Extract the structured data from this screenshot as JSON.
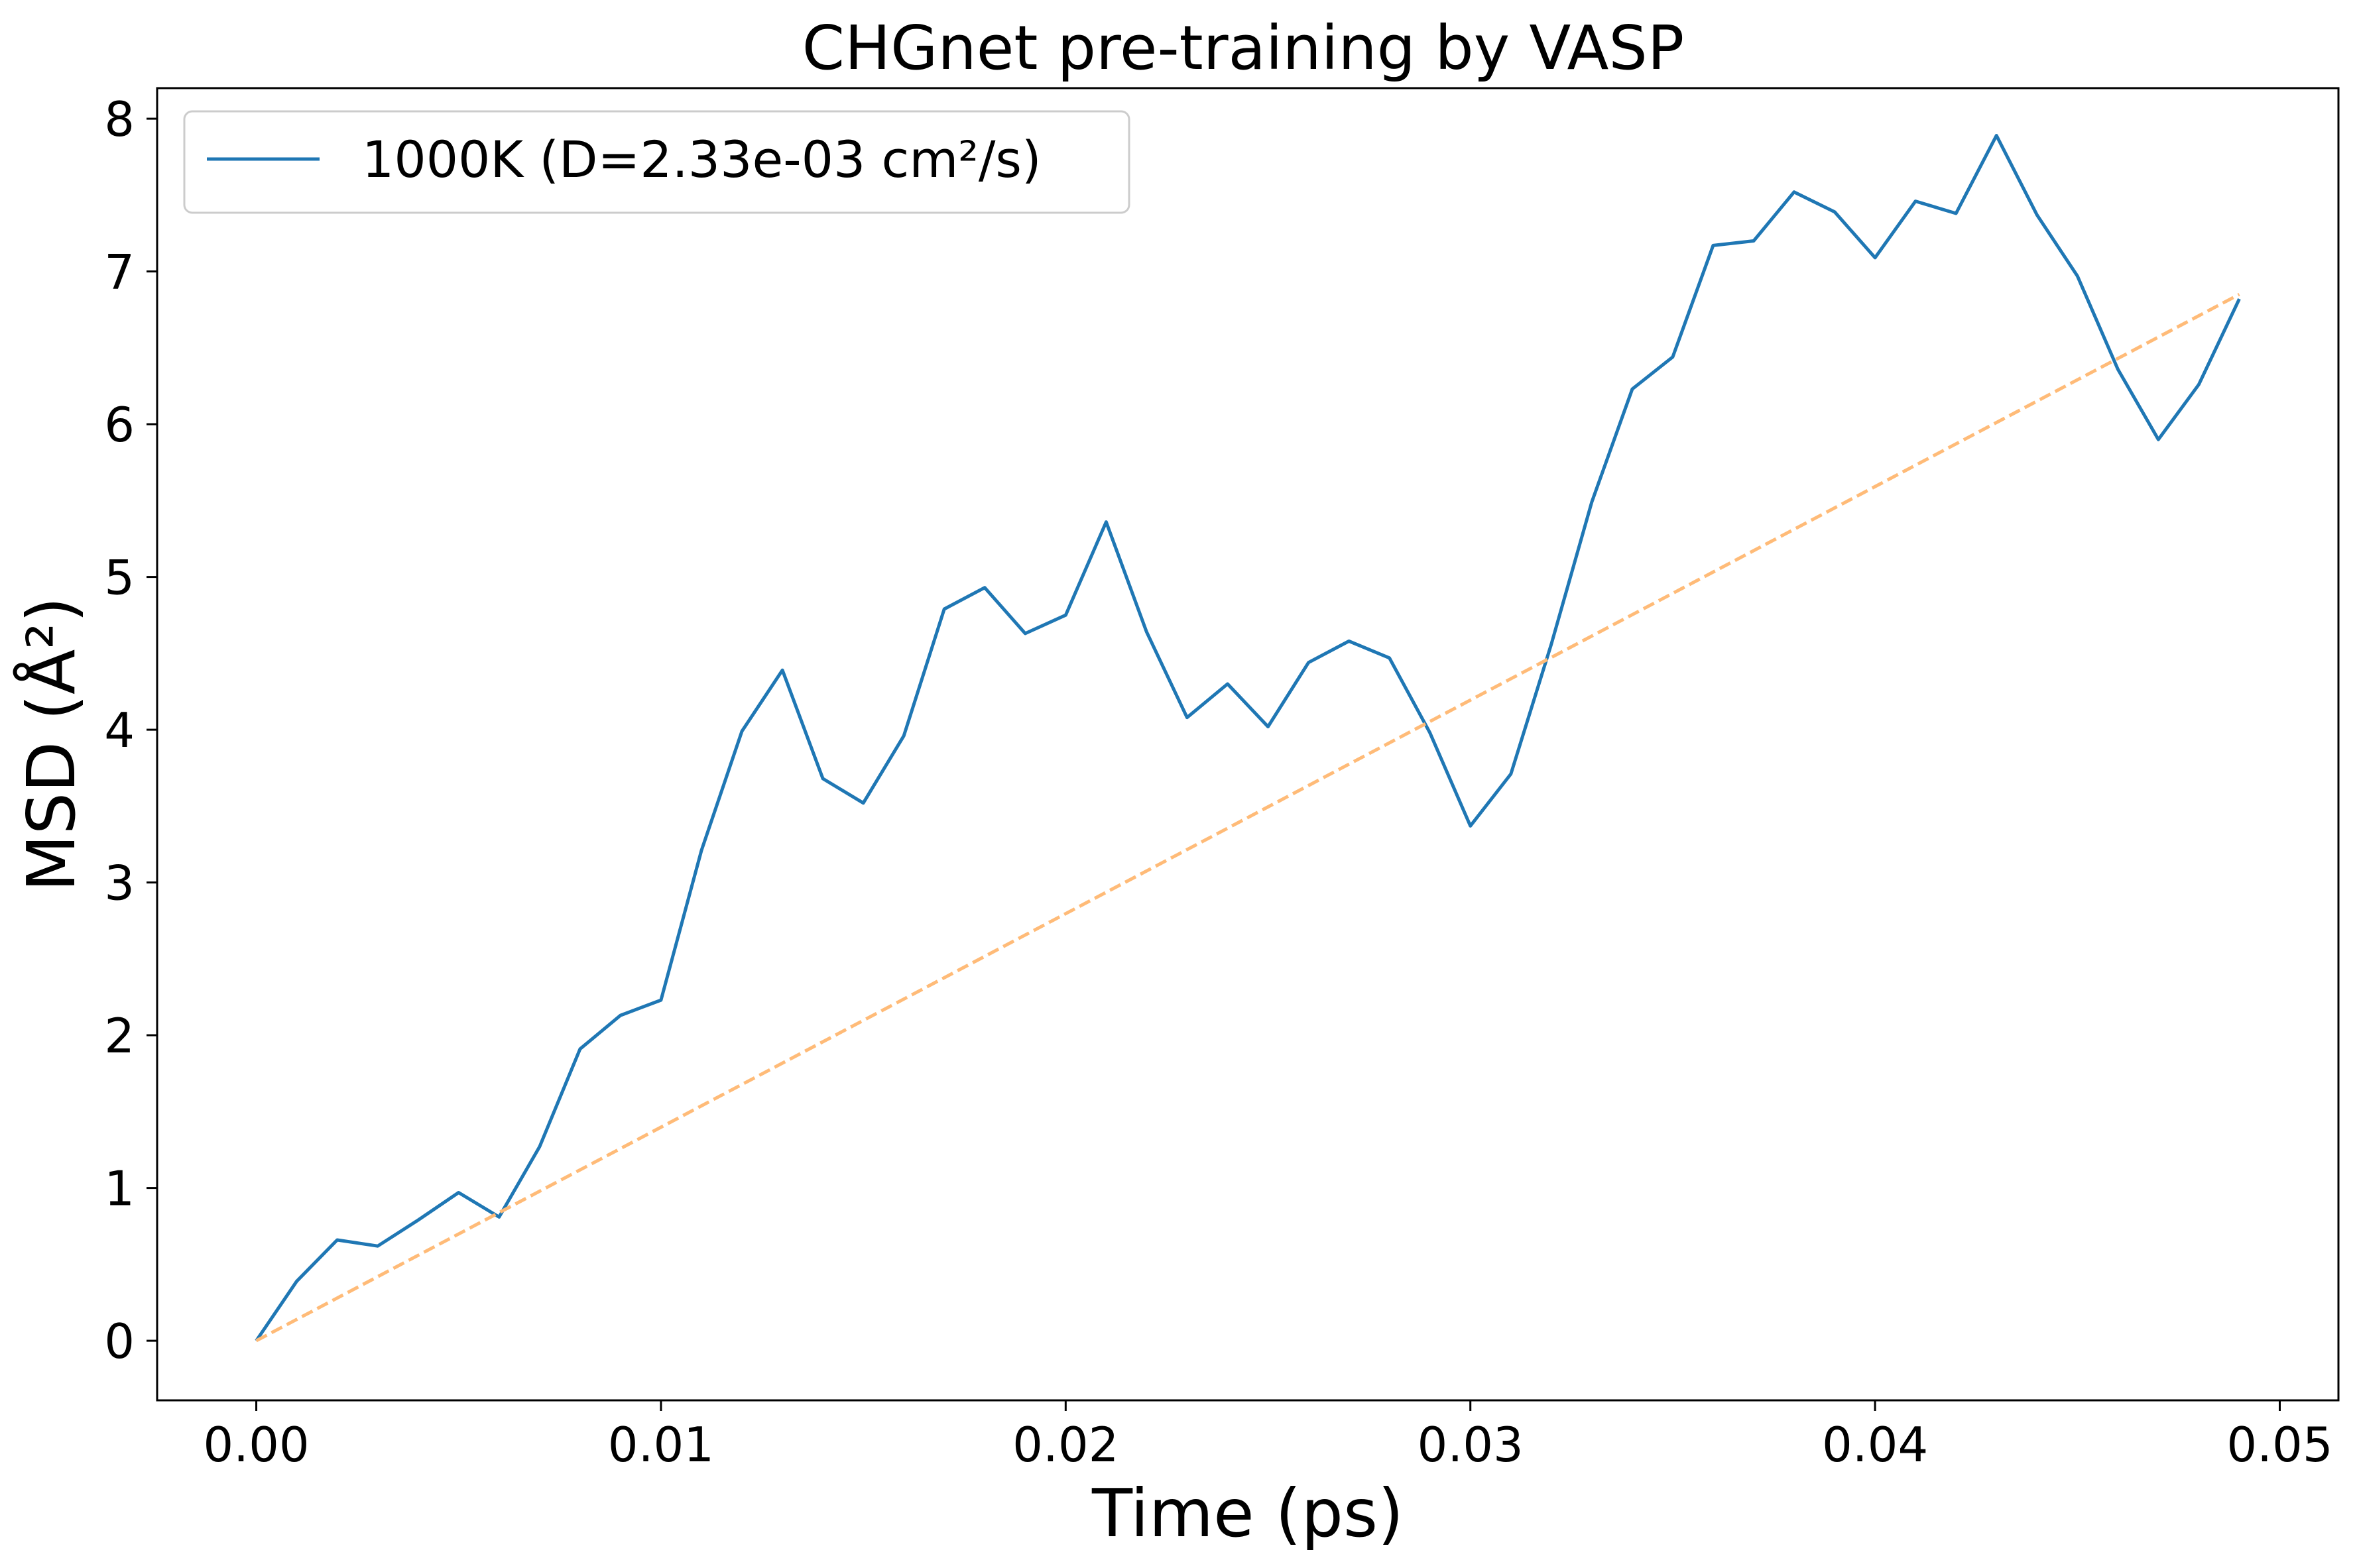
{
  "chart_data": {
    "type": "line",
    "title": "CHGnet pre-training by VASP",
    "xlabel": "Time (ps)",
    "ylabel": "MSD (Å²)",
    "xlim": [
      -0.00245,
      0.05145
    ],
    "ylim": [
      -0.39,
      8.2
    ],
    "xticks": [
      0.0,
      0.01,
      0.02,
      0.03,
      0.04,
      0.05
    ],
    "xtick_labels": [
      "0.00",
      "0.01",
      "0.02",
      "0.03",
      "0.04",
      "0.05"
    ],
    "yticks": [
      0,
      1,
      2,
      3,
      4,
      5,
      6,
      7,
      8
    ],
    "ytick_labels": [
      "0",
      "1",
      "2",
      "3",
      "4",
      "5",
      "6",
      "7",
      "8"
    ],
    "grid": false,
    "legend_position": "top-left",
    "series": [
      {
        "name": "1000K (D=2.33e-03 cm²/s)",
        "color": "#1f77b4",
        "style": "solid",
        "x": [
          0.0,
          0.001,
          0.002,
          0.003,
          0.004,
          0.005,
          0.006,
          0.007,
          0.008,
          0.009,
          0.01,
          0.011,
          0.012,
          0.013,
          0.014,
          0.015,
          0.016,
          0.017,
          0.018,
          0.019,
          0.02,
          0.021,
          0.022,
          0.023,
          0.024,
          0.025,
          0.026,
          0.027,
          0.028,
          0.029,
          0.03,
          0.031,
          0.032,
          0.033,
          0.034,
          0.035,
          0.036,
          0.037,
          0.038,
          0.039,
          0.04,
          0.041,
          0.042,
          0.043,
          0.044,
          0.045,
          0.046,
          0.047,
          0.048,
          0.049
        ],
        "y": [
          0.0,
          0.39,
          0.66,
          0.62,
          0.79,
          0.97,
          0.81,
          1.27,
          1.91,
          2.13,
          2.23,
          3.21,
          3.99,
          4.39,
          3.68,
          3.52,
          3.96,
          4.79,
          4.93,
          4.63,
          4.75,
          5.36,
          4.64,
          4.08,
          4.3,
          4.02,
          4.44,
          4.58,
          4.47,
          3.98,
          3.37,
          3.71,
          4.56,
          5.49,
          6.23,
          6.44,
          7.17,
          7.2,
          7.52,
          7.39,
          7.09,
          7.46,
          7.38,
          7.89,
          7.37,
          6.97,
          6.36,
          5.9,
          6.26,
          6.82
        ]
      },
      {
        "name": "",
        "color": "#ffbb78",
        "style": "dashed",
        "x": [
          0.0,
          0.049
        ],
        "y": [
          0.0,
          6.85
        ]
      }
    ]
  }
}
